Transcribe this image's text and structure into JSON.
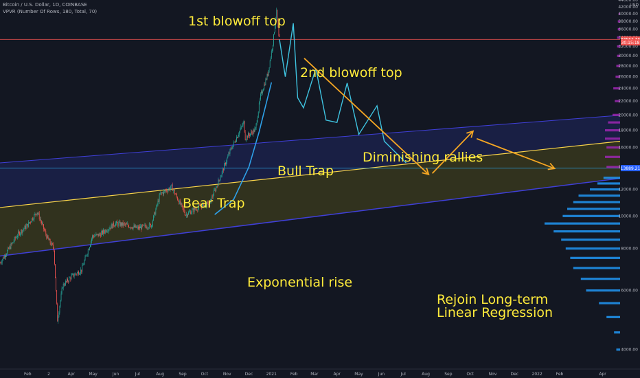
{
  "header": {
    "symbol_line": "Bitcoin / U.S. Dollar, 1D, COINBASE",
    "indicator_line": "VPVR (Number Of Rows, 180, Total, 70)"
  },
  "annotations": {
    "first_top": "1st blowoff top",
    "second_top": "2nd blowoff top",
    "bull_trap": "Bull Trap",
    "bear_trap": "Bear Trap",
    "diminishing": "Diminishing rallies",
    "exponential": "Exponential rise",
    "rejoin_1": "Rejoin Long-term",
    "rejoin_2": "Linear Regression"
  },
  "colors": {
    "background": "#131722",
    "channel_line": "#3f3fd8",
    "regression_line": "#f9d44a",
    "projection_path": "#3fc3e0",
    "curve": "#2ea0e8",
    "arrow": "#f5a623",
    "candle_up": "#26a69a",
    "candle_down": "#ef5350",
    "volume_profile_up": "#2196f3",
    "volume_profile_down": "#9c27b0",
    "price_tag": "#2962ff",
    "last_price_tag": "#ef5350",
    "axis_text": "#b2b5be"
  },
  "chart_data": {
    "type": "candlestick",
    "title": "Bitcoin / U.S. Dollar, 1D, COINBASE",
    "price_axis": {
      "unit": "USD",
      "ticks": [
        44000,
        42000,
        40000,
        38000,
        36000,
        34000,
        32000,
        30000,
        28000,
        26000,
        24000,
        22000,
        20000,
        18000,
        16000,
        14000,
        12000,
        10000,
        8000,
        6000,
        4000
      ],
      "range": [
        3500,
        44000
      ],
      "scale": "log",
      "tick_labels": [
        "44000.00",
        "42000.00",
        "40000.00",
        "38000.00",
        "36000.00",
        "34000.00",
        "32000.00",
        "30000.00",
        "28000.00",
        "26000.00",
        "24000.00",
        "22000.00",
        "20000.00",
        "18000.00",
        "16000.00",
        "14000.00",
        "12000.00",
        "10000.00",
        "8000.00",
        "6000.00",
        "4000.00"
      ],
      "price_tags": [
        {
          "label": "33567.36",
          "value": 33567.36,
          "color": "#ef5350"
        },
        {
          "label": "30:15:18",
          "value": 32900,
          "color": "#ef5350"
        },
        {
          "label": "13889.21",
          "value": 13889.21,
          "color": "#2962ff"
        }
      ]
    },
    "time_axis": {
      "range": [
        "2019-12-25",
        "2022-04-25"
      ],
      "ticks": [
        {
          "label": "Feb",
          "date": "2020-02-01"
        },
        {
          "label": "2",
          "date": "2020-03-01"
        },
        {
          "label": "Apr",
          "date": "2020-04-01"
        },
        {
          "label": "May",
          "date": "2020-05-01"
        },
        {
          "label": "Jun",
          "date": "2020-06-01"
        },
        {
          "label": "Jul",
          "date": "2020-07-01"
        },
        {
          "label": "Aug",
          "date": "2020-08-01"
        },
        {
          "label": "Sep",
          "date": "2020-09-01"
        },
        {
          "label": "Oct",
          "date": "2020-10-01"
        },
        {
          "label": "Nov",
          "date": "2020-11-01"
        },
        {
          "label": "Dec",
          "date": "2020-12-01"
        },
        {
          "label": "2021",
          "date": "2021-01-01"
        },
        {
          "label": "Feb",
          "date": "2021-02-01"
        },
        {
          "label": "Mar",
          "date": "2021-03-01"
        },
        {
          "label": "Apr",
          "date": "2021-04-01"
        },
        {
          "label": "May",
          "date": "2021-05-01"
        },
        {
          "label": "Jun",
          "date": "2021-06-01"
        },
        {
          "label": "Jul",
          "date": "2021-07-01"
        },
        {
          "label": "Aug",
          "date": "2021-08-01"
        },
        {
          "label": "Sep",
          "date": "2021-09-01"
        },
        {
          "label": "Oct",
          "date": "2021-10-01"
        },
        {
          "label": "Nov",
          "date": "2021-11-01"
        },
        {
          "label": "Dec",
          "date": "2021-12-01"
        },
        {
          "label": "2022",
          "date": "2022-01-01"
        },
        {
          "label": "Feb",
          "date": "2022-02-01"
        },
        {
          "label": "Apr",
          "date": "2022-04-01"
        }
      ]
    },
    "price_path": [
      [
        "2019-12-25",
        7250
      ],
      [
        "2020-01-08",
        8100
      ],
      [
        "2020-01-18",
        8800
      ],
      [
        "2020-02-01",
        9400
      ],
      [
        "2020-02-14",
        10300
      ],
      [
        "2020-02-28",
        8600
      ],
      [
        "2020-03-08",
        8000
      ],
      [
        "2020-03-13",
        4900
      ],
      [
        "2020-03-20",
        6200
      ],
      [
        "2020-04-01",
        6600
      ],
      [
        "2020-04-15",
        6900
      ],
      [
        "2020-04-30",
        8700
      ],
      [
        "2020-05-10",
        8800
      ],
      [
        "2020-05-31",
        9500
      ],
      [
        "2020-06-15",
        9400
      ],
      [
        "2020-07-01",
        9200
      ],
      [
        "2020-07-20",
        9400
      ],
      [
        "2020-08-01",
        11600
      ],
      [
        "2020-08-17",
        12200
      ],
      [
        "2020-09-05",
        10100
      ],
      [
        "2020-09-25",
        10700
      ],
      [
        "2020-10-08",
        10900
      ],
      [
        "2020-10-21",
        12800
      ],
      [
        "2020-11-05",
        15600
      ],
      [
        "2020-11-24",
        19000
      ],
      [
        "2020-11-26",
        17100
      ],
      [
        "2020-12-10",
        18100
      ],
      [
        "2020-12-17",
        22800
      ],
      [
        "2020-12-27",
        26500
      ],
      [
        "2021-01-03",
        32800
      ],
      [
        "2021-01-08",
        40500
      ],
      [
        "2021-01-11",
        34000
      ],
      [
        "2021-01-12",
        33567
      ]
    ],
    "projection_path": [
      [
        "2021-01-12",
        33567
      ],
      [
        "2021-01-20",
        26000
      ],
      [
        "2021-01-31",
        37500
      ],
      [
        "2021-02-06",
        22500
      ],
      [
        "2021-02-14",
        21000
      ],
      [
        "2021-03-03",
        27500
      ],
      [
        "2021-03-17",
        19300
      ],
      [
        "2021-04-01",
        19000
      ],
      [
        "2021-04-15",
        24900
      ],
      [
        "2021-05-01",
        17500
      ],
      [
        "2021-05-26",
        21300
      ],
      [
        "2021-06-05",
        16700
      ],
      [
        "2021-07-05",
        14400
      ]
    ],
    "exponential_curve": [
      [
        "2020-10-15",
        10100
      ],
      [
        "2020-11-10",
        11200
      ],
      [
        "2020-12-01",
        14000
      ],
      [
        "2020-12-15",
        17800
      ],
      [
        "2021-01-01",
        25000
      ]
    ],
    "regression_channel": {
      "upper": [
        [
          "2019-12-25",
          14400
        ],
        [
          "2022-04-25",
          19950
        ]
      ],
      "middle": [
        [
          "2019-12-25",
          10600
        ],
        [
          "2022-04-25",
          16700
        ]
      ],
      "lower": [
        [
          "2019-12-25",
          7600
        ],
        [
          "2022-04-25",
          12950
        ]
      ]
    },
    "horizontal_lines": [
      {
        "value": 13889.21,
        "color": "#2a9bd8"
      },
      {
        "value": 33567.36,
        "color": "#ef5350"
      }
    ],
    "projection_arrows": [
      {
        "from": [
          "2021-02-15",
          29500
        ],
        "to": [
          "2021-08-05",
          13300
        ]
      },
      {
        "from": [
          "2021-08-10",
          13400
        ],
        "to": [
          "2021-10-05",
          17900
        ]
      },
      {
        "from": [
          "2021-10-10",
          17000
        ],
        "to": [
          "2022-01-25",
          13850
        ]
      }
    ],
    "volume_profile": [
      {
        "price": 4000,
        "volume": 0.05,
        "dir": "up"
      },
      {
        "price": 4500,
        "volume": 0.08,
        "dir": "up"
      },
      {
        "price": 5000,
        "volume": 0.18,
        "dir": "up"
      },
      {
        "price": 5500,
        "volume": 0.28,
        "dir": "up"
      },
      {
        "price": 6000,
        "volume": 0.45,
        "dir": "up"
      },
      {
        "price": 6500,
        "volume": 0.52,
        "dir": "up"
      },
      {
        "price": 7000,
        "volume": 0.62,
        "dir": "up"
      },
      {
        "price": 7500,
        "volume": 0.66,
        "dir": "up"
      },
      {
        "price": 8000,
        "volume": 0.72,
        "dir": "up"
      },
      {
        "price": 8500,
        "volume": 0.78,
        "dir": "up"
      },
      {
        "price": 9000,
        "volume": 0.88,
        "dir": "up"
      },
      {
        "price": 9500,
        "volume": 1.0,
        "dir": "up"
      },
      {
        "price": 10000,
        "volume": 0.76,
        "dir": "up"
      },
      {
        "price": 10500,
        "volume": 0.7,
        "dir": "up"
      },
      {
        "price": 11000,
        "volume": 0.62,
        "dir": "up"
      },
      {
        "price": 11500,
        "volume": 0.55,
        "dir": "up"
      },
      {
        "price": 12000,
        "volume": 0.4,
        "dir": "up"
      },
      {
        "price": 12500,
        "volume": 0.3,
        "dir": "up"
      },
      {
        "price": 13000,
        "volume": 0.22,
        "dir": "up"
      },
      {
        "price": 14000,
        "volume": 0.18,
        "dir": "down"
      },
      {
        "price": 15000,
        "volume": 0.2,
        "dir": "down"
      },
      {
        "price": 16000,
        "volume": 0.18,
        "dir": "down"
      },
      {
        "price": 17000,
        "volume": 0.2,
        "dir": "down"
      },
      {
        "price": 18000,
        "volume": 0.2,
        "dir": "down"
      },
      {
        "price": 19000,
        "volume": 0.16,
        "dir": "down"
      },
      {
        "price": 20000,
        "volume": 0.1,
        "dir": "down"
      },
      {
        "price": 22000,
        "volume": 0.07,
        "dir": "down"
      },
      {
        "price": 24000,
        "volume": 0.09,
        "dir": "down"
      },
      {
        "price": 26000,
        "volume": 0.06,
        "dir": "down"
      },
      {
        "price": 28000,
        "volume": 0.05,
        "dir": "down"
      },
      {
        "price": 30000,
        "volume": 0.04,
        "dir": "down"
      },
      {
        "price": 32000,
        "volume": 0.04,
        "dir": "down"
      },
      {
        "price": 34000,
        "volume": 0.04,
        "dir": "down"
      },
      {
        "price": 36000,
        "volume": 0.03,
        "dir": "down"
      },
      {
        "price": 38000,
        "volume": 0.03,
        "dir": "down"
      },
      {
        "price": 40000,
        "volume": 0.02,
        "dir": "down"
      }
    ],
    "grid": false
  }
}
